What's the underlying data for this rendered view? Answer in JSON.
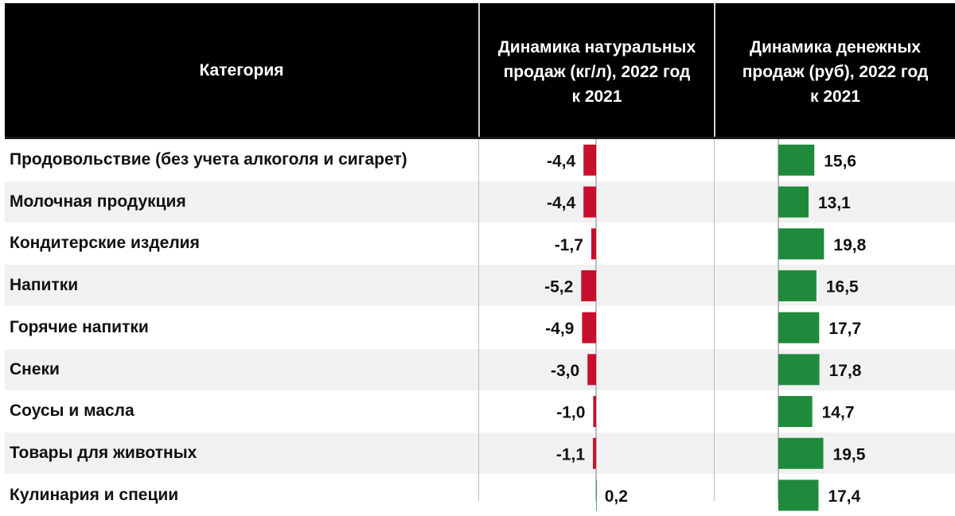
{
  "header": {
    "category": "Категория",
    "natural": "Динамика натуральных\nпродаж (кг/л), 2022 год\nк 2021",
    "monetary": "Динамика денежных\nпродаж (руб), 2022 год\nк 2021"
  },
  "colors": {
    "negative": "#c8102e",
    "positive": "#1f8a3b",
    "header_bg": "#000000"
  },
  "chart_data": {
    "type": "table",
    "categories": [
      "Продовольствие (без учета алкоголя и сигарет)",
      "Молочная продукция",
      "Кондитерские изделия",
      "Напитки",
      "Горячие напитки",
      "Снеки",
      "Соусы и масла",
      "Товары для животных",
      "Кулинария и специи"
    ],
    "series": [
      {
        "name": "Динамика натуральных продаж (кг/л), 2022 год к 2021",
        "values": [
          -4.4,
          -4.4,
          -1.7,
          -5.2,
          -4.9,
          -3.0,
          -1.0,
          -1.1,
          0.2
        ],
        "labels": [
          "-4,4",
          "-4,4",
          "-1,7",
          "-5,2",
          "-4,9",
          "-3,0",
          "-1,0",
          "-1,1",
          "0,2"
        ]
      },
      {
        "name": "Динамика денежных продаж (руб), 2022 год к 2021",
        "values": [
          15.6,
          13.1,
          19.8,
          16.5,
          17.7,
          17.8,
          14.7,
          19.5,
          17.4
        ],
        "labels": [
          "15,6",
          "13,1",
          "19,8",
          "16,5",
          "17,7",
          "17,8",
          "14,7",
          "19,5",
          "17,4"
        ]
      }
    ]
  }
}
